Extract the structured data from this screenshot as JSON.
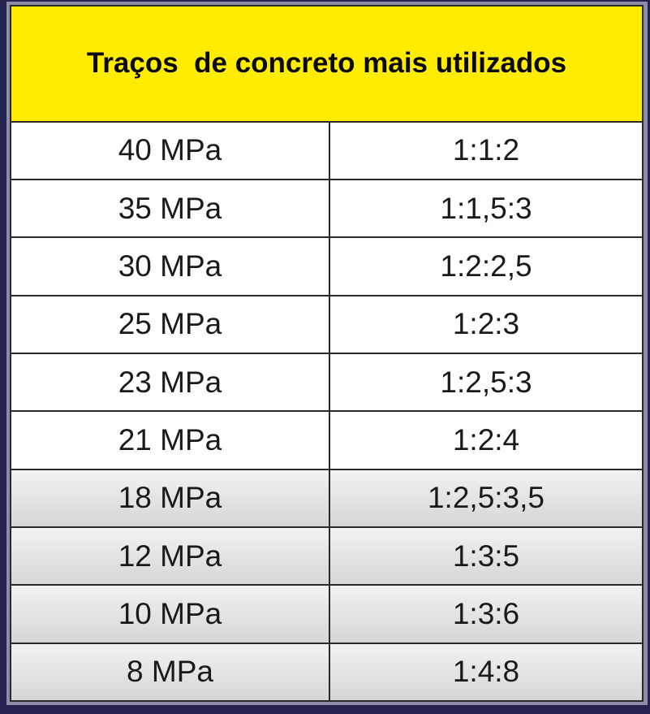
{
  "table": {
    "header": "Traços  de concreto mais utilizados",
    "rows": [
      {
        "strength": "40 MPa",
        "mix": "1:1:2"
      },
      {
        "strength": "35 MPa",
        "mix": "1:1,5:3"
      },
      {
        "strength": "30 MPa",
        "mix": "1:2:2,5"
      },
      {
        "strength": "25 MPa",
        "mix": "1:2:3"
      },
      {
        "strength": "23 MPa",
        "mix": "1:2,5:3"
      },
      {
        "strength": "21 MPa",
        "mix": "1:2:4"
      },
      {
        "strength": "18 MPa",
        "mix": "1:2,5:3,5"
      },
      {
        "strength": "12 MPa",
        "mix": "1:3:5"
      },
      {
        "strength": "10 MPa",
        "mix": "1:3:6"
      },
      {
        "strength": "8 MPa",
        "mix": "1:4:8"
      }
    ]
  },
  "colors": {
    "header": "#ffec00",
    "background": "#24234f"
  }
}
